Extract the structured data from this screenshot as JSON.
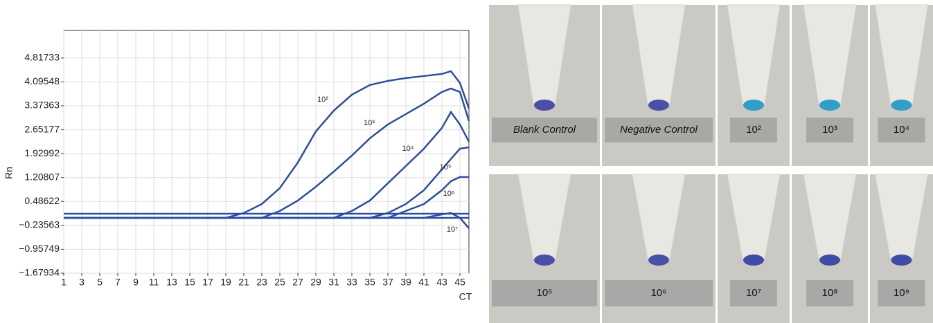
{
  "chart_data": {
    "type": "line",
    "y_label": "Rn",
    "x_label": "CT",
    "x": [
      1,
      19,
      21,
      23,
      25,
      27,
      29,
      31,
      33,
      35,
      37,
      39,
      41,
      43,
      44,
      45,
      46
    ],
    "series": [
      {
        "name": "10²",
        "color": "#2b4ea0",
        "values": [
          -0.008,
          -0.008,
          0.138,
          0.409,
          0.89,
          1.663,
          2.602,
          3.229,
          3.709,
          4.002,
          4.127,
          4.211,
          4.273,
          4.336,
          4.42,
          4.065,
          3.292
        ]
      },
      {
        "name": "10³",
        "color": "#2b4ea0",
        "values": [
          -0.008,
          -0.008,
          -0.008,
          -0.008,
          0.2,
          0.514,
          0.931,
          1.391,
          1.872,
          2.394,
          2.811,
          3.125,
          3.438,
          3.793,
          3.898,
          3.793,
          2.916
        ]
      },
      {
        "name": "10⁴",
        "color": "#2b4ea0",
        "values": [
          -0.008,
          -0.008,
          -0.008,
          -0.008,
          -0.008,
          -0.008,
          -0.008,
          -0.008,
          0.2,
          0.514,
          1.036,
          1.558,
          2.08,
          2.707,
          3.187,
          2.811,
          2.289
        ]
      },
      {
        "name": "10⁵",
        "color": "#2b4ea0",
        "values": [
          -0.008,
          -0.008,
          -0.008,
          -0.008,
          -0.008,
          -0.008,
          -0.008,
          -0.008,
          -0.008,
          -0.008,
          0.138,
          0.409,
          0.827,
          1.454,
          1.767,
          2.08,
          2.122
        ]
      },
      {
        "name": "10⁶",
        "color": "#2b4ea0",
        "values": [
          -0.008,
          -0.008,
          -0.008,
          -0.008,
          -0.008,
          -0.008,
          -0.008,
          -0.008,
          -0.008,
          -0.008,
          -0.008,
          0.2,
          0.409,
          0.827,
          1.099,
          1.224,
          1.224
        ]
      },
      {
        "name": "10⁷",
        "color": "#2b4ea0",
        "values": [
          -0.008,
          -0.008,
          -0.008,
          -0.008,
          -0.008,
          -0.008,
          -0.008,
          -0.008,
          -0.008,
          -0.008,
          -0.008,
          -0.008,
          -0.008,
          0.096,
          0.138,
          -0.008,
          -0.322
        ]
      },
      {
        "color": "#2b4ea0",
        "values": [
          0.117,
          0.117,
          0.117,
          0.117,
          0.117,
          0.117,
          0.117,
          0.117,
          0.117,
          0.117,
          0.117,
          0.117,
          0.117,
          0.117,
          0.117,
          0.117,
          0.117
        ]
      },
      {
        "color": "#2b4ea0",
        "values": [
          -0.008,
          -0.008,
          -0.008,
          -0.008,
          -0.008,
          -0.008,
          -0.008,
          -0.008,
          -0.008,
          -0.008,
          -0.008,
          -0.008,
          -0.008,
          -0.008,
          -0.008,
          -0.008,
          -0.008
        ]
      }
    ],
    "xlim": [
      1,
      46
    ],
    "ylim": [
      -1.67934,
      5.65
    ],
    "xticks": [
      1,
      3,
      5,
      7,
      9,
      11,
      13,
      15,
      17,
      19,
      21,
      23,
      25,
      27,
      29,
      31,
      33,
      35,
      37,
      39,
      41,
      43,
      45
    ],
    "yticks": [
      {
        "value": -1.67934,
        "label": "−1.67934"
      },
      {
        "value": -0.95749,
        "label": "−0.95749"
      },
      {
        "value": -0.23563,
        "label": "−0.23563"
      },
      0.48622,
      1.20807,
      1.92992,
      2.65177,
      3.37363,
      4.09548,
      4.81733
    ],
    "grid": true
  },
  "photos": {
    "top_row": [
      "Blank Control",
      "Negative Control",
      "10²",
      "10³",
      "10⁴"
    ],
    "bottom_row": [
      "10⁵",
      "10⁶",
      "10⁷",
      "10⁸",
      "10⁹"
    ]
  }
}
